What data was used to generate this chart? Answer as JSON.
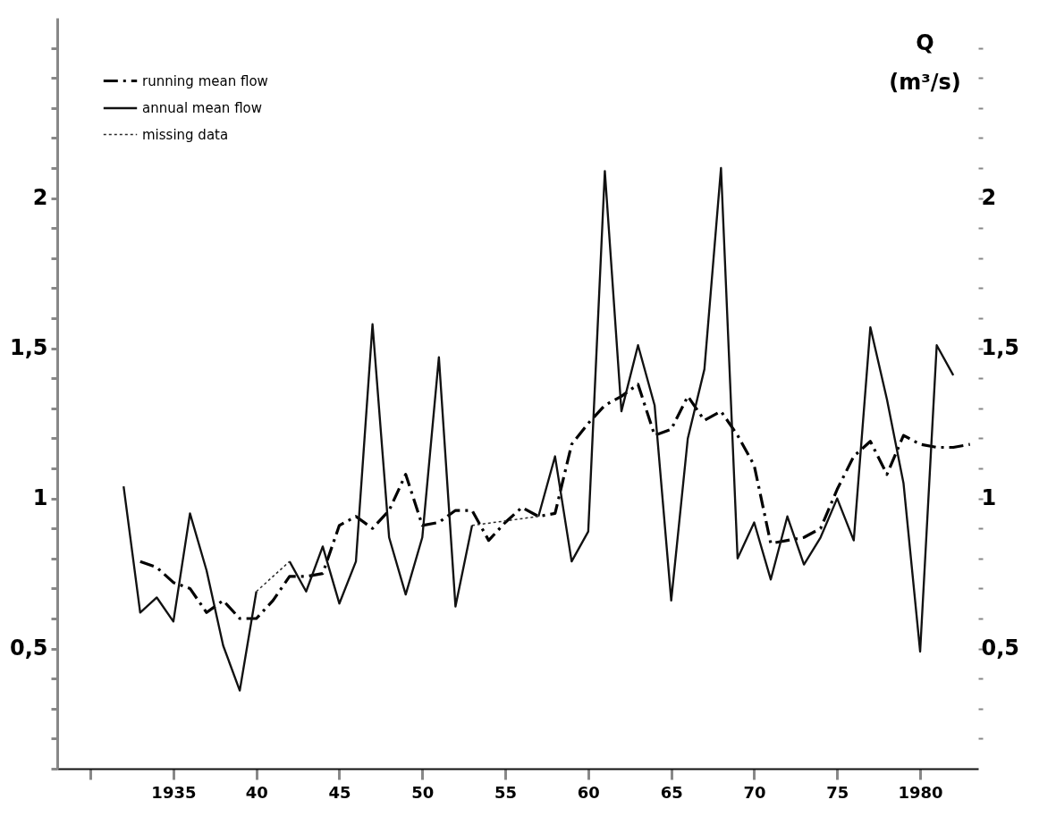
{
  "chart_data": {
    "type": "line",
    "y2label": "Q (m³/s)",
    "legend": "top left",
    "grid": false,
    "marker": "none",
    "xlim": [
      1928,
      1983.5
    ],
    "xticks": [
      {
        "value": 1930,
        "label": null
      },
      1935,
      {
        "value": 1940,
        "label": "40"
      },
      {
        "value": 1945,
        "label": "45"
      },
      {
        "value": 1950,
        "label": "50"
      },
      {
        "value": 1955,
        "label": "55"
      },
      {
        "value": 1960,
        "label": "60"
      },
      {
        "value": 1965,
        "label": "65"
      },
      {
        "value": 1970,
        "label": "70"
      },
      {
        "value": 1975,
        "label": "75"
      },
      1980
    ],
    "ylim": [
      0.1,
      2.6
    ],
    "yticks": [
      {
        "value": 0.1,
        "label": null
      },
      {
        "value": 0.2,
        "label": null
      },
      {
        "value": 0.3,
        "label": null
      },
      {
        "value": 0.4,
        "label": null
      },
      {
        "value": 0.5,
        "label": "0,5"
      },
      {
        "value": 0.6,
        "label": null
      },
      {
        "value": 0.7,
        "label": null
      },
      {
        "value": 0.8,
        "label": null
      },
      {
        "value": 0.9,
        "label": null
      },
      1,
      {
        "value": 1.1,
        "label": null
      },
      {
        "value": 1.2,
        "label": null
      },
      {
        "value": 1.3,
        "label": null
      },
      {
        "value": 1.4,
        "label": null
      },
      {
        "value": 1.5,
        "label": "1,5"
      },
      {
        "value": 1.6,
        "label": null
      },
      {
        "value": 1.7,
        "label": null
      },
      {
        "value": 1.8,
        "label": null
      },
      {
        "value": 1.9,
        "label": null
      },
      2,
      {
        "value": 2.1,
        "label": null
      },
      {
        "value": 2.2,
        "label": null
      },
      {
        "value": 2.3,
        "label": null
      },
      {
        "value": 2.4,
        "label": null
      },
      {
        "value": 2.5,
        "label": null
      }
    ],
    "y2lim": [
      0.1,
      2.6
    ],
    "y2ticks": [
      {
        "value": 0.2,
        "label": null
      },
      {
        "value": 0.3,
        "label": null
      },
      {
        "value": 0.4,
        "label": null
      },
      {
        "value": 0.5,
        "label": "0,5"
      },
      {
        "value": 0.6,
        "label": null
      },
      {
        "value": 0.7,
        "label": null
      },
      {
        "value": 0.8,
        "label": null
      },
      {
        "value": 0.9,
        "label": null
      },
      1,
      {
        "value": 1.1,
        "label": null
      },
      {
        "value": 1.2,
        "label": null
      },
      {
        "value": 1.3,
        "label": null
      },
      {
        "value": 1.4,
        "label": null
      },
      {
        "value": 1.5,
        "label": "1,5"
      },
      {
        "value": 1.6,
        "label": null
      },
      {
        "value": 1.7,
        "label": null
      },
      {
        "value": 1.8,
        "label": null
      },
      {
        "value": 1.9,
        "label": null
      },
      2,
      {
        "value": 2.1,
        "label": null
      },
      {
        "value": 2.2,
        "label": null
      },
      {
        "value": 2.3,
        "label": null
      },
      {
        "value": 2.4,
        "label": null
      },
      {
        "value": 2.5,
        "label": null
      }
    ],
    "series": [
      {
        "name": "running mean flow",
        "color": "#000000",
        "line_style": "dashed",
        "x": [
          1933,
          1934,
          1935,
          1936,
          1937,
          1938,
          1939,
          1940,
          1941,
          1942,
          1943,
          1944,
          1945,
          1946,
          1947,
          1948,
          1949,
          1950,
          1951,
          1952,
          1953,
          1954,
          1955,
          1956,
          1957,
          1958,
          1959,
          1960,
          1961,
          1962,
          1963,
          1964,
          1965,
          1966,
          1967,
          1968,
          1969,
          1970,
          1971,
          1972,
          1973,
          1974,
          1975,
          1976,
          1977,
          1978,
          1979,
          1980,
          1981,
          1982,
          1983
        ],
        "values": [
          0.79,
          0.77,
          0.72,
          0.7,
          0.62,
          0.66,
          0.6,
          0.6,
          0.66,
          0.74,
          0.74,
          0.75,
          0.91,
          0.94,
          0.9,
          0.96,
          1.08,
          0.91,
          0.92,
          0.96,
          0.96,
          0.86,
          0.92,
          0.97,
          0.94,
          0.95,
          1.18,
          1.25,
          1.31,
          1.34,
          1.38,
          1.21,
          1.23,
          1.34,
          1.26,
          1.29,
          1.21,
          1.11,
          0.85,
          0.86,
          0.87,
          0.9,
          1.03,
          1.14,
          1.19,
          1.08,
          1.21,
          1.18,
          1.17,
          1.17,
          1.18
        ]
      },
      {
        "name": "annual mean flow",
        "color": "#111111",
        "line_style": "solid",
        "x": [
          1932,
          1933,
          1934,
          1935,
          1936,
          1937,
          1938,
          1939,
          1940,
          1941,
          1942,
          1943,
          1944,
          1945,
          1946,
          1947,
          1948,
          1949,
          1950,
          1951,
          1952,
          1953,
          1954,
          1955,
          1956,
          1957,
          1958,
          1959,
          1960,
          1961,
          1962,
          1963,
          1964,
          1965,
          1966,
          1967,
          1968,
          1969,
          1970,
          1971,
          1972,
          1973,
          1974,
          1975,
          1976,
          1977,
          1978,
          1979,
          1980,
          1981,
          1982
        ],
        "values": [
          1.04,
          0.62,
          0.67,
          0.59,
          0.95,
          0.76,
          0.51,
          0.36,
          0.69,
          null,
          0.79,
          0.69,
          0.84,
          0.65,
          0.79,
          1.58,
          0.87,
          0.68,
          0.87,
          1.47,
          0.64,
          0.91,
          null,
          null,
          null,
          0.94,
          1.14,
          0.79,
          0.89,
          2.09,
          1.29,
          1.51,
          1.31,
          0.66,
          1.2,
          1.43,
          2.1,
          0.8,
          0.92,
          0.73,
          0.94,
          0.78,
          0.87,
          1.0,
          0.86,
          1.57,
          1.33,
          1.05,
          0.49,
          1.51,
          1.41
        ]
      },
      {
        "name": "missing data",
        "color": "#2a2a2a",
        "line_style": "dotted",
        "x": [
          1940,
          1942,
          1948,
          1953,
          1957
        ],
        "values": [
          0.69,
          0.79,
          null,
          0.91,
          0.94
        ]
      }
    ]
  }
}
